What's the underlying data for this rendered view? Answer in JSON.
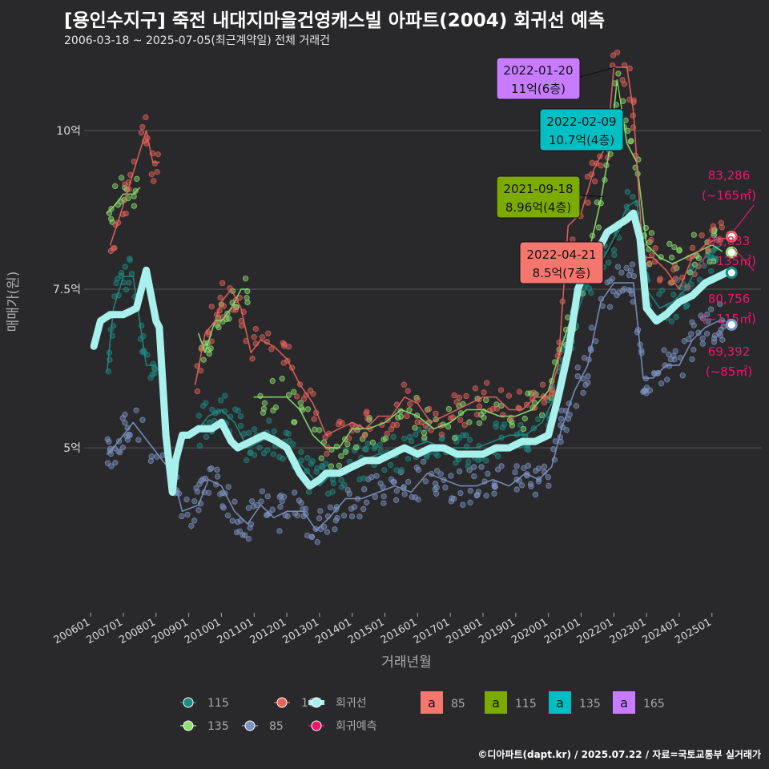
{
  "title": "[용인수지구] 죽전 내대지마을건영캐스빌 아파트(2004) 회귀선 예측",
  "subtitle": "2006-03-18 ~ 2025-07-05(최근계약일) 전체 거래건",
  "footer": "©디아파트(dapt.kr) / 2025.07.22 / 자료=국토교통부 실거래가",
  "colors": {
    "background": "#29292b",
    "grid": "#555555",
    "s115": "#1f8a82",
    "s165": "#e8635c",
    "s135": "#8ee070",
    "s85": "#7d93c2",
    "regression": "#a8f0ec",
    "forecast": "#e8196b",
    "box85": "#f4766e",
    "box115": "#7caa00",
    "box135": "#00bfc4",
    "box165": "#c77cff"
  },
  "chart_data": {
    "type": "line",
    "xlabel": "거래년월",
    "ylabel": "매매가(원)",
    "x_ticks": [
      "200601",
      "200701",
      "200801",
      "200901",
      "201001",
      "201101",
      "201201",
      "201301",
      "201401",
      "201501",
      "201601",
      "201701",
      "201801",
      "201901",
      "202001",
      "202101",
      "202201",
      "202301",
      "202401",
      "202501"
    ],
    "y_ticks": [
      {
        "value": 5,
        "label": "5억"
      },
      {
        "value": 7.5,
        "label": "7.5억"
      },
      {
        "value": 10,
        "label": "10억"
      }
    ],
    "xlim": [
      2005.8,
      2026.5
    ],
    "ylim": [
      2.4,
      11.2
    ],
    "grid": true,
    "series": [
      {
        "name": "85",
        "color_key": "s85",
        "x": [
          2006.5,
          2006.7,
          2007.0,
          2007.3,
          2008.5,
          2008.8,
          2009.3,
          2009.6,
          2010.0,
          2010.4,
          2010.8,
          2011.2,
          2011.6,
          2012.0,
          2012.5,
          2012.9,
          2013.3,
          2013.8,
          2014.3,
          2014.8,
          2015.3,
          2015.8,
          2016.3,
          2016.8,
          2017.3,
          2017.8,
          2018.3,
          2018.8,
          2019.3,
          2019.7,
          2020.1,
          2020.4,
          2020.8,
          2021.2,
          2021.6,
          2022.0,
          2022.4,
          2022.6,
          2022.9,
          2023.2,
          2023.6,
          2024.0,
          2024.4,
          2024.8,
          2025.2,
          2025.4
        ],
        "y": [
          4.9,
          5.0,
          5.2,
          5.4,
          4.6,
          4.0,
          4.1,
          4.5,
          4.4,
          4.0,
          3.8,
          4.1,
          3.9,
          4.0,
          4.0,
          3.7,
          3.9,
          4.2,
          4.2,
          4.3,
          4.4,
          4.3,
          4.6,
          4.5,
          4.4,
          4.4,
          4.5,
          4.4,
          4.6,
          4.5,
          4.7,
          5.3,
          5.9,
          6.3,
          7.3,
          7.6,
          7.6,
          7.6,
          6.1,
          6.1,
          6.3,
          6.3,
          6.7,
          6.9,
          7.0,
          7.0
        ]
      },
      {
        "name": "115",
        "color_key": "s115",
        "x": [
          2006.5,
          2006.7,
          2007.0,
          2007.3,
          2007.7,
          2008.0
        ],
        "y": [
          6.2,
          7.2,
          7.7,
          7.7,
          6.3,
          6.3
        ]
      },
      {
        "name": "115b",
        "color_key": "s115",
        "x": [
          2009.3,
          2009.6,
          2010.0,
          2010.4,
          2010.8,
          2011.2,
          2011.6,
          2012.0,
          2012.5,
          2013.0,
          2013.4,
          2013.8,
          2014.3,
          2014.8,
          2015.3,
          2015.8,
          2016.3,
          2016.8,
          2017.3,
          2017.8,
          2018.3,
          2018.8,
          2019.3,
          2019.8,
          2020.2,
          2020.5,
          2020.8,
          2021.2,
          2021.6,
          2022.0,
          2022.4,
          2022.7,
          2023.0,
          2023.4,
          2023.8,
          2024.2,
          2024.6,
          2025.0,
          2025.3
        ],
        "y": [
          5.3,
          5.5,
          5.6,
          5.4,
          5.0,
          5.1,
          5.2,
          5.0,
          4.7,
          4.4,
          4.6,
          4.7,
          4.8,
          4.9,
          4.9,
          5.0,
          5.1,
          5.0,
          5.0,
          5.0,
          5.1,
          5.2,
          5.2,
          5.4,
          5.8,
          6.5,
          7.0,
          7.6,
          7.9,
          8.3,
          8.8,
          8.9,
          7.5,
          7.2,
          7.3,
          7.5,
          7.9,
          8.1,
          8.2
        ]
      },
      {
        "name": "135",
        "color_key": "s135",
        "x": [
          2006.5,
          2006.7,
          2007.0,
          2007.3,
          2007.5
        ],
        "y": [
          8.7,
          8.8,
          9.0,
          9.0,
          9.1
        ]
      },
      {
        "name": "135b",
        "color_key": "s135",
        "x": [
          2009.3,
          2009.5,
          2009.8,
          2010.0,
          2010.3,
          2010.6,
          2010.8
        ],
        "y": [
          6.8,
          6.5,
          7.0,
          7.0,
          7.2,
          7.5,
          7.5
        ]
      },
      {
        "name": "135c",
        "color_key": "s135",
        "x": [
          2011.0,
          2011.5,
          2012.0,
          2012.4,
          2012.8,
          2013.2,
          2013.6,
          2014.0,
          2014.5,
          2015.0,
          2015.5,
          2016.0,
          2016.5,
          2017.0,
          2017.5,
          2018.0,
          2018.5,
          2019.0,
          2019.5,
          2020.0,
          2020.4,
          2020.8,
          2021.2,
          2021.6,
          2021.9,
          2022.1,
          2022.4,
          2022.7,
          2023.0,
          2023.4,
          2023.8,
          2024.2,
          2024.6,
          2025.0,
          2025.3
        ],
        "y": [
          5.8,
          5.8,
          5.8,
          5.6,
          5.2,
          5.0,
          5.0,
          5.3,
          5.3,
          5.4,
          5.6,
          5.5,
          5.3,
          5.4,
          5.6,
          5.6,
          5.5,
          5.5,
          5.6,
          5.9,
          6.6,
          7.2,
          8.0,
          8.9,
          9.8,
          10.8,
          9.8,
          9.5,
          8.2,
          8.0,
          7.9,
          8.0,
          8.1,
          8.2,
          8.1
        ]
      },
      {
        "name": "165",
        "color_key": "s165",
        "x": [
          2006.6,
          2006.8,
          2007.1,
          2007.4,
          2007.7,
          2007.9,
          2008.1
        ],
        "y": [
          8.2,
          8.5,
          9.0,
          9.5,
          10.0,
          9.5,
          9.5
        ]
      },
      {
        "name": "165b",
        "color_key": "s165",
        "x": [
          2009.2,
          2009.5,
          2009.8,
          2010.0,
          2010.3,
          2010.6,
          2010.9,
          2011.2,
          2011.6,
          2012.0,
          2012.4,
          2012.8,
          2013.2,
          2013.6,
          2014.0,
          2014.4,
          2014.8,
          2015.2,
          2015.6,
          2016.0,
          2016.4,
          2016.8,
          2017.2,
          2017.6,
          2018.0,
          2018.4,
          2018.8,
          2019.2,
          2019.6,
          2020.0,
          2020.3,
          2020.6,
          2021.0,
          2021.4,
          2021.8,
          2022.0,
          2022.4,
          2022.6,
          2022.9,
          2023.2,
          2023.6,
          2024.0,
          2024.4,
          2024.8,
          2025.2,
          2025.4
        ],
        "y": [
          6.0,
          6.8,
          7.0,
          7.3,
          7.5,
          7.2,
          6.5,
          6.7,
          6.6,
          6.4,
          6.0,
          5.7,
          5.2,
          5.3,
          5.4,
          5.3,
          5.5,
          5.5,
          5.8,
          5.7,
          5.4,
          5.5,
          5.6,
          5.7,
          5.8,
          5.8,
          5.6,
          5.6,
          5.8,
          5.8,
          6.3,
          8.5,
          8.7,
          9.4,
          9.8,
          11.0,
          11.0,
          10.3,
          8.0,
          8.0,
          7.8,
          7.5,
          8.0,
          8.2,
          8.3,
          8.3
        ]
      },
      {
        "name": "회귀선",
        "color_key": "regression",
        "x": [
          2006.1,
          2006.3,
          2006.6,
          2007.0,
          2007.4,
          2007.7,
          2008.0,
          2008.1,
          2008.3,
          2008.5,
          2008.6,
          2008.8,
          2009.0,
          2009.3,
          2009.7,
          2010.0,
          2010.3,
          2010.5,
          2010.9,
          2011.3,
          2011.7,
          2012.0,
          2012.4,
          2012.7,
          2013.0,
          2013.2,
          2013.6,
          2014.0,
          2014.4,
          2014.8,
          2015.2,
          2015.6,
          2016.0,
          2016.4,
          2016.8,
          2017.2,
          2017.6,
          2018.0,
          2018.4,
          2018.8,
          2019.2,
          2019.6,
          2020.0,
          2020.3,
          2020.6,
          2020.9,
          2021.2,
          2021.5,
          2021.8,
          2022.1,
          2022.4,
          2022.6,
          2022.8,
          2023.0,
          2023.3,
          2023.6,
          2024.0,
          2024.4,
          2024.8,
          2025.2,
          2025.6
        ],
        "y": [
          6.6,
          7.0,
          7.1,
          7.1,
          7.2,
          7.8,
          7.0,
          6.9,
          5.2,
          4.3,
          4.8,
          5.2,
          5.2,
          5.3,
          5.3,
          5.4,
          5.1,
          5.0,
          5.1,
          5.2,
          5.1,
          5.0,
          4.6,
          4.4,
          4.5,
          4.6,
          4.6,
          4.7,
          4.8,
          4.8,
          4.9,
          5.0,
          4.9,
          5.0,
          5.0,
          4.9,
          4.9,
          4.9,
          5.0,
          5.0,
          5.1,
          5.1,
          5.2,
          5.8,
          6.5,
          7.5,
          7.9,
          8.1,
          8.4,
          8.5,
          8.6,
          8.7,
          8.3,
          7.2,
          7.0,
          7.1,
          7.3,
          7.4,
          7.6,
          7.7,
          7.8
        ]
      }
    ],
    "forecast_points": [
      {
        "x": 2025.6,
        "y": 8.33,
        "label1": "83,286",
        "label2": "(~165㎡)",
        "color_key": "s165"
      },
      {
        "x": 2025.6,
        "y": 8.08,
        "label1": "80,833",
        "label2": "(~135㎡)",
        "color_key": "s135"
      },
      {
        "x": 2025.6,
        "y": 7.76,
        "label1": "80,756",
        "label2": "(~115㎡)",
        "color_key": "s115"
      },
      {
        "x": 2025.6,
        "y": 6.94,
        "label1": "69,392",
        "label2": "(~85㎡)",
        "color_key": "s85"
      }
    ],
    "annotations": [
      {
        "line1": "2022-01-20",
        "line2": "11억(6층)",
        "color_key": "box165",
        "x": 2022.05,
        "y": 11.0
      },
      {
        "line1": "2022-02-09",
        "line2": "10.7억(4층)",
        "color_key": "box135",
        "x": 2022.1,
        "y": 10.7
      },
      {
        "line1": "2021-09-18",
        "line2": "8.96억(4층)",
        "color_key": "box115",
        "x": 2021.7,
        "y": 8.96
      },
      {
        "line1": "2022-04-21",
        "line2": "8.5억(7층)",
        "color_key": "box85",
        "x": 2022.3,
        "y": 8.5
      }
    ],
    "legend": {
      "position": "bottom",
      "series_items": [
        {
          "label": "115",
          "color_key": "s115"
        },
        {
          "label": "165",
          "color_key": "s165"
        },
        {
          "label": "회귀선",
          "color_key": "regression"
        },
        {
          "label": "135",
          "color_key": "s135"
        },
        {
          "label": "85",
          "color_key": "s85"
        },
        {
          "label": "회귀예측",
          "color_key": "forecast"
        }
      ],
      "box_glyph": "a",
      "box_items": [
        {
          "label": "85",
          "color_key": "box85"
        },
        {
          "label": "115",
          "color_key": "box115"
        },
        {
          "label": "135",
          "color_key": "box135"
        },
        {
          "label": "165",
          "color_key": "box165"
        }
      ]
    }
  }
}
